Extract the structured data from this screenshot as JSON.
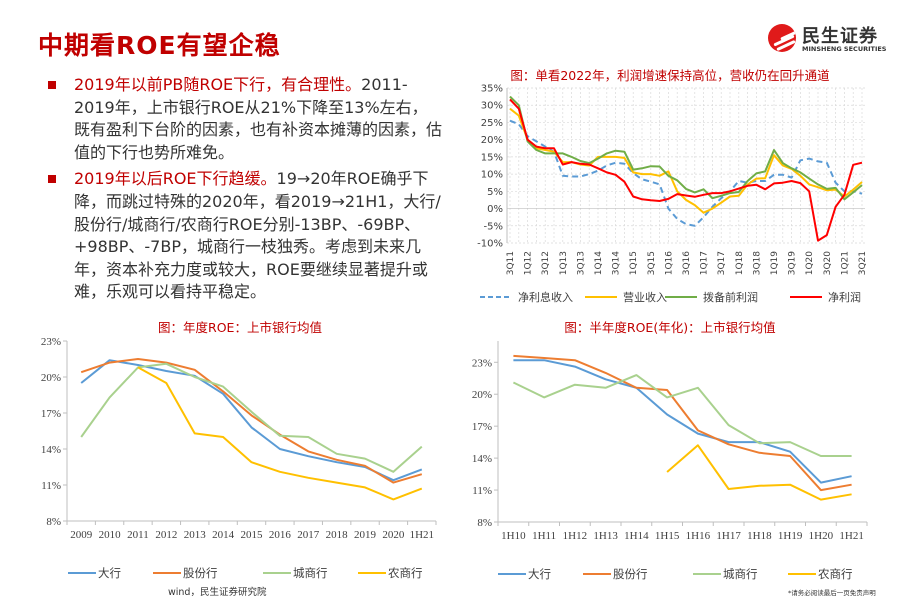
{
  "header": {
    "title": "中期看ROE有望企稳"
  },
  "logo": {
    "name_cn": "民生证券",
    "name_en": "MINSHENG SECURITIES",
    "color": "#e01a1a"
  },
  "bullets": [
    {
      "highlight": "2019年以前PB随ROE下行，有合理性。",
      "text": "2011-2019年，上市银行ROE从21%下降至13%左右，既有盈利下台阶的因素，也有补资本摊薄的因素，估值的下行也势所难免。"
    },
    {
      "highlight": "2019年以后ROE下行趋缓。",
      "text": "19→20年ROE确乎下降，而跳过特殊的2020年，看2019→21H1，大行/股份行/城商行/农商行ROE分别-13BP、-69BP、+98BP、-7BP，城商行一枝独秀。考虑到未来几年，资本补充力度或较大，ROE要继续显著提升或难，乐观可以看持平稳定。"
    }
  ],
  "footer": {
    "source": "wind，民生证券研究院",
    "disclaimer": "*请务必阅读最后一页免责声明"
  },
  "chart_data": [
    {
      "type": "line",
      "title": "图：单看2022年，利润增速保持高位，营收仍在回升通道",
      "ylim": [
        -10,
        35
      ],
      "yticks": [
        "-10%",
        "-5%",
        "0%",
        "5%",
        "10%",
        "15%",
        "20%",
        "25%",
        "30%",
        "35%"
      ],
      "ytick_values": [
        -10,
        -5,
        0,
        5,
        10,
        15,
        20,
        25,
        30,
        35
      ],
      "grid": true,
      "legend": "bottom",
      "categories": [
        "3Q11",
        "4Q11",
        "1Q12",
        "2Q12",
        "3Q12",
        "4Q12",
        "1Q13",
        "2Q13",
        "3Q13",
        "4Q13",
        "1Q14",
        "2Q14",
        "3Q14",
        "4Q14",
        "1Q15",
        "2Q15",
        "3Q15",
        "4Q15",
        "1Q16",
        "2Q16",
        "3Q16",
        "4Q16",
        "1Q17",
        "2Q17",
        "3Q17",
        "4Q17",
        "1Q18",
        "2Q18",
        "3Q18",
        "4Q18",
        "1Q19",
        "2Q19",
        "3Q19",
        "4Q19",
        "1Q20",
        "2Q20",
        "3Q20",
        "4Q20",
        "1Q21",
        "2Q21",
        "3Q21"
      ],
      "xtick_labels": [
        "3Q11",
        "1Q12",
        "3Q12",
        "1Q13",
        "3Q13",
        "1Q14",
        "3Q14",
        "1Q15",
        "3Q15",
        "1Q16",
        "3Q16",
        "1Q17",
        "3Q17",
        "1Q18",
        "3Q18",
        "1Q19",
        "3Q19",
        "1Q20",
        "3Q20",
        "1Q21",
        "3Q21"
      ],
      "series": [
        {
          "name": "净利息收入",
          "color": "#5b9bd5",
          "dash": true,
          "values": [
            25.5,
            24.5,
            21,
            19.5,
            18,
            16.5,
            9.5,
            9.3,
            9.3,
            10,
            11,
            12.5,
            13.3,
            13,
            10.3,
            8.5,
            7.8,
            7,
            0,
            -3,
            -4.5,
            -5,
            -2.5,
            0.5,
            3,
            5,
            8,
            7.5,
            8,
            8,
            9.8,
            9.8,
            9,
            14,
            14.5,
            13.7,
            13.3,
            7.5,
            5,
            5,
            4.3
          ]
        },
        {
          "name": "营业收入",
          "color": "#ffc000",
          "values": [
            29,
            27,
            20,
            17.5,
            17,
            16.5,
            13.5,
            13.5,
            12.8,
            12.5,
            15,
            15,
            15,
            14.7,
            10.5,
            10,
            10,
            9.5,
            10.8,
            5,
            2.5,
            1,
            -1.2,
            0,
            1.7,
            3.5,
            3.7,
            7,
            8.7,
            8.8,
            15.5,
            12.5,
            11.5,
            9.5,
            7,
            6.2,
            5.3,
            5.5,
            3.5,
            5.5,
            7.7
          ]
        },
        {
          "name": "拨备前利润",
          "color": "#70ad47",
          "values": [
            32.5,
            30,
            19.5,
            17,
            16,
            16,
            16,
            15,
            13.8,
            13.2,
            14.5,
            16,
            16.8,
            16.5,
            11.3,
            11.7,
            12.3,
            12.2,
            9.5,
            8.2,
            5.7,
            4.7,
            5.6,
            3,
            3.7,
            4.5,
            4.8,
            8,
            10.2,
            10.8,
            17,
            13.2,
            11.7,
            10.5,
            8.7,
            7,
            5.7,
            6,
            2.7,
            4.7,
            6.8
          ]
        },
        {
          "name": "净利润",
          "color": "#ff0000",
          "values": [
            31.7,
            29,
            20,
            18,
            17.5,
            17.5,
            12.8,
            13.5,
            13,
            12.8,
            11.7,
            10.5,
            9.8,
            7.8,
            3.5,
            2.7,
            2.4,
            2.2,
            2.8,
            4.2,
            3.8,
            3.4,
            4,
            4.5,
            4.5,
            5,
            5.8,
            6.6,
            6.9,
            5.6,
            7.3,
            7.5,
            8,
            7.4,
            5,
            -9.3,
            -7.7,
            0.5,
            4,
            12.7,
            13.3
          ]
        }
      ]
    },
    {
      "type": "line",
      "title": "图：年度ROE：上市银行均值",
      "ylim": [
        8,
        23
      ],
      "yticks": [
        "8%",
        "11%",
        "14%",
        "17%",
        "20%",
        "23%"
      ],
      "ytick_values": [
        8,
        11,
        14,
        17,
        20,
        23
      ],
      "grid": false,
      "legend": "bottom",
      "categories": [
        "2009",
        "2010",
        "2011",
        "2012",
        "2013",
        "2014",
        "2015",
        "2016",
        "2017",
        "2018",
        "2019",
        "2020",
        "1H21"
      ],
      "series": [
        {
          "name": "大行",
          "color": "#5b9bd5",
          "values": [
            19.5,
            21.4,
            21.0,
            20.5,
            20.1,
            18.6,
            15.8,
            14.0,
            13.4,
            12.9,
            12.5,
            11.4,
            12.3
          ]
        },
        {
          "name": "股份行",
          "color": "#ed7d31",
          "values": [
            20.4,
            21.2,
            21.5,
            21.2,
            20.6,
            18.8,
            16.8,
            15.2,
            13.8,
            13.1,
            12.6,
            11.2,
            11.9
          ]
        },
        {
          "name": "城商行",
          "color": "#a9d18e",
          "values": [
            15.0,
            18.3,
            20.8,
            21.1,
            20.0,
            19.2,
            17.1,
            15.1,
            15.0,
            13.6,
            13.2,
            12.1,
            14.2
          ]
        },
        {
          "name": "农商行",
          "color": "#ffc000",
          "values": [
            null,
            null,
            20.8,
            19.5,
            15.3,
            15.0,
            12.9,
            12.1,
            11.6,
            11.2,
            10.8,
            9.8,
            10.7
          ]
        }
      ]
    },
    {
      "type": "line",
      "title": "图：半年度ROE(年化)：上市银行均值",
      "ylim": [
        8,
        25
      ],
      "yticks": [
        "8%",
        "11%",
        "14%",
        "17%",
        "20%",
        "23%"
      ],
      "ytick_values": [
        8,
        11,
        14,
        17,
        20,
        23
      ],
      "grid": false,
      "legend": "bottom",
      "categories": [
        "1H10",
        "1H11",
        "1H12",
        "1H13",
        "1H14",
        "1H15",
        "1H16",
        "1H17",
        "1H18",
        "1H19",
        "1H20",
        "1H21"
      ],
      "series": [
        {
          "name": "大行",
          "color": "#5b9bd5",
          "values": [
            23.2,
            23.2,
            22.6,
            21.4,
            20.6,
            18.1,
            16.3,
            15.5,
            15.5,
            14.6,
            11.7,
            12.3
          ]
        },
        {
          "name": "股份行",
          "color": "#ed7d31",
          "values": [
            23.6,
            23.4,
            23.2,
            22.0,
            20.6,
            20.4,
            16.6,
            15.3,
            14.5,
            14.2,
            11.0,
            11.5
          ]
        },
        {
          "name": "城商行",
          "color": "#a9d18e",
          "values": [
            21.1,
            19.7,
            20.9,
            20.6,
            21.8,
            19.7,
            20.6,
            17.1,
            15.4,
            15.5,
            14.2,
            14.2
          ]
        },
        {
          "name": "农商行",
          "color": "#ffc000",
          "values": [
            null,
            null,
            null,
            null,
            null,
            12.7,
            15.2,
            11.1,
            11.4,
            11.5,
            10.1,
            10.6
          ]
        }
      ]
    }
  ]
}
